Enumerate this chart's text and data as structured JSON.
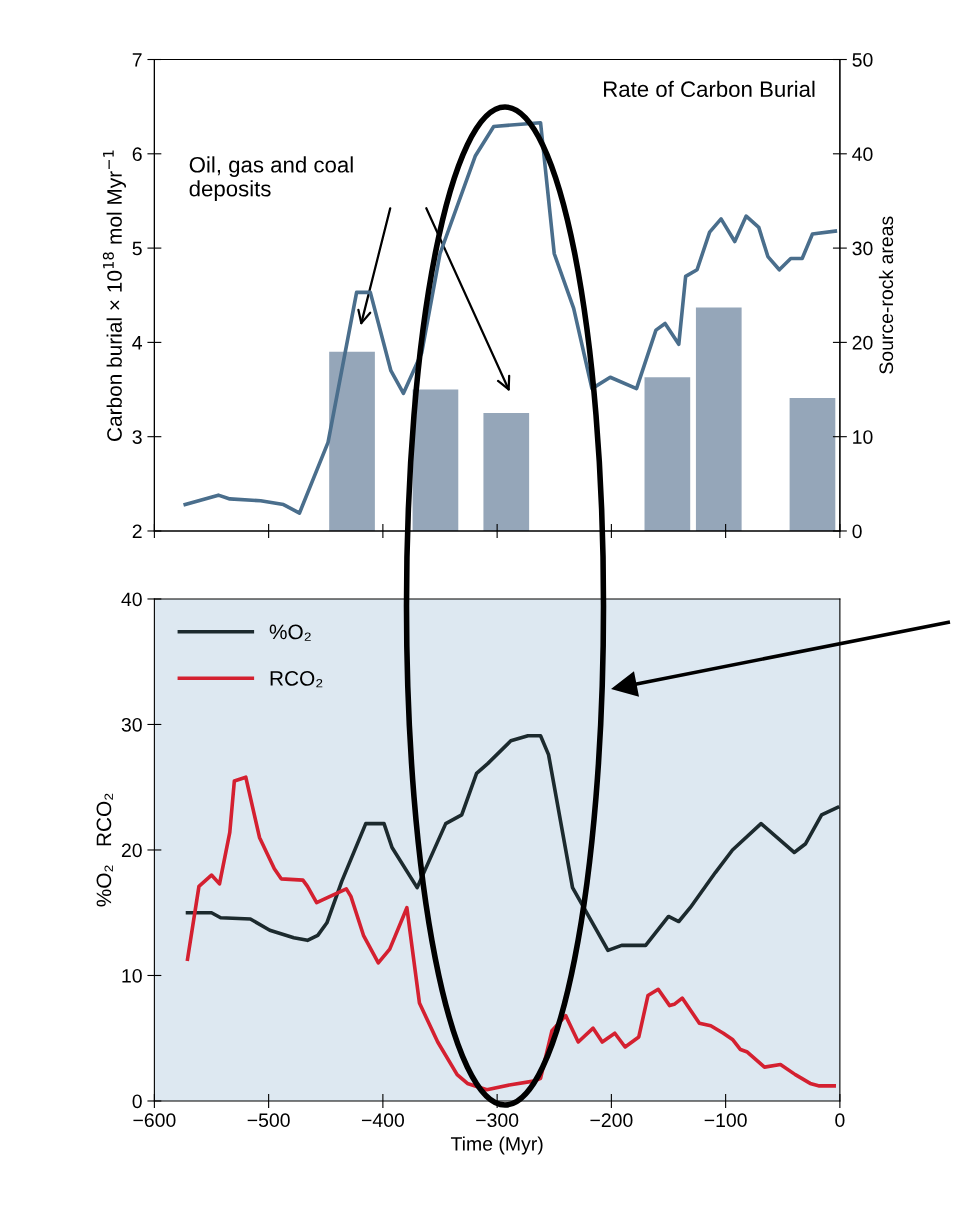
{
  "chart_data": [
    {
      "type": "line",
      "ylabel": "Carbon burial × 10$^{18}$ mol Myr$^{−1}$",
      "y2label": "Source-rock areas",
      "annotations": [
        "Oil, gas and coal\ndeposits"
      ],
      "xlim": [
        -600,
        0
      ],
      "xticks": [
        {
          "value": -600,
          "label": null
        },
        {
          "value": -500,
          "label": null
        },
        {
          "value": -400,
          "label": null
        },
        {
          "value": -300,
          "label": null
        },
        {
          "value": -200,
          "label": null
        },
        {
          "value": -100,
          "label": null
        },
        {
          "value": 0,
          "label": null
        }
      ],
      "ylim": [
        2,
        7
      ],
      "yticks": [
        2,
        3,
        4,
        5,
        6,
        7
      ],
      "y2lim": [
        0,
        50
      ],
      "y2ticks": [
        0,
        10,
        20,
        30,
        40,
        50
      ],
      "tick_labels": "y",
      "series": [
        {
          "name": "Rate of Carbon Burial",
          "color": "#4a6e8c",
          "x": [
            -573,
            -544,
            -534,
            -507,
            -487,
            -473,
            -448,
            -423,
            -411,
            -393,
            -382,
            -366,
            -350,
            -319,
            -303,
            -262,
            -250,
            -233,
            -217,
            -201,
            -178,
            -161,
            -153,
            -141,
            -135,
            -125,
            -114,
            -104,
            -92,
            -82,
            -71,
            -63,
            -53,
            -43,
            -33,
            -24,
            -4
          ],
          "values": [
            2.28,
            2.38,
            2.34,
            2.32,
            2.28,
            2.19,
            2.94,
            4.53,
            4.53,
            3.7,
            3.46,
            3.89,
            4.94,
            5.98,
            6.29,
            6.33,
            4.94,
            4.36,
            3.51,
            3.63,
            3.51,
            4.13,
            4.2,
            3.98,
            4.7,
            4.77,
            5.17,
            5.31,
            5.07,
            5.34,
            5.22,
            4.91,
            4.77,
            4.89,
            4.89,
            5.15,
            5.18
          ]
        },
        {
          "type": "bar",
          "axis": "y2",
          "color": "#8397ad",
          "x": [
            -427,
            -354,
            -292,
            -151,
            -106,
            -24
          ],
          "values": [
            19,
            15,
            12.5,
            16.3,
            23.7,
            14.1
          ]
        }
      ]
    },
    {
      "type": "line",
      "xlabel": "Time (Myr)",
      "ylabel": "%O₂   RCO₂",
      "legend": "top left",
      "xlim": [
        -600,
        0
      ],
      "xticks": [
        {
          "value": -600,
          "label": "−600"
        },
        {
          "value": -500,
          "label": "−500"
        },
        {
          "value": -400,
          "label": "−400"
        },
        {
          "value": -300,
          "label": "−300"
        },
        {
          "value": -200,
          "label": "−200"
        },
        {
          "value": -100,
          "label": "−100"
        },
        {
          "value": 0,
          "label": "0"
        }
      ],
      "ylim": [
        0,
        40
      ],
      "yticks": [
        0,
        10,
        20,
        30,
        40
      ],
      "series": [
        {
          "name": "%O₂",
          "color": "#1c2a2e",
          "x": [
            -571,
            -550,
            -542,
            -516,
            -499,
            -478,
            -466,
            -457,
            -449,
            -436,
            -415,
            -399,
            -392,
            -370,
            -345,
            -331,
            -318,
            -308,
            -288,
            -273,
            -262,
            -255,
            -234,
            -203,
            -191,
            -170,
            -150,
            -141,
            -131,
            -109,
            -94,
            -69,
            -40,
            -30,
            -16,
            -2
          ],
          "values": [
            15.0,
            15.0,
            14.6,
            14.5,
            13.6,
            13.0,
            12.8,
            13.2,
            14.2,
            17.5,
            22.1,
            22.1,
            20.2,
            17.0,
            22.1,
            22.8,
            26.1,
            26.9,
            28.7,
            29.1,
            29.1,
            27.6,
            17.0,
            12.0,
            12.4,
            12.4,
            14.7,
            14.3,
            15.4,
            18.2,
            20.0,
            22.1,
            19.8,
            20.5,
            22.8,
            23.4
          ]
        },
        {
          "name": "RCO₂",
          "color": "#d42030",
          "x": [
            -571,
            -561,
            -550,
            -543,
            -534,
            -530,
            -520,
            -508,
            -495,
            -489,
            -470,
            -466,
            -458,
            -432,
            -428,
            -417,
            -404,
            -394,
            -379,
            -368,
            -352,
            -335,
            -326,
            -309,
            -288,
            -267,
            -262,
            -252,
            -240,
            -229,
            -216,
            -208,
            -197,
            -188,
            -176,
            -168,
            -159,
            -149,
            -145,
            -138,
            -123,
            -113,
            -102,
            -94,
            -87,
            -81,
            -66,
            -52,
            -39,
            -26,
            -18,
            -5
          ],
          "values": [
            11.3,
            17.1,
            18.0,
            17.3,
            21.4,
            25.5,
            25.8,
            21.0,
            18.5,
            17.7,
            17.6,
            17.1,
            15.8,
            16.9,
            16.3,
            13.2,
            11.0,
            12.1,
            15.4,
            7.8,
            4.7,
            2.1,
            1.4,
            0.9,
            1.3,
            1.6,
            1.8,
            5.6,
            6.8,
            4.7,
            5.8,
            4.7,
            5.4,
            4.3,
            5.1,
            8.4,
            8.9,
            7.6,
            7.7,
            8.2,
            6.2,
            6.0,
            5.4,
            4.9,
            4.1,
            3.9,
            2.7,
            2.9,
            2.1,
            1.4,
            1.2,
            1.2
          ]
        }
      ]
    }
  ]
}
